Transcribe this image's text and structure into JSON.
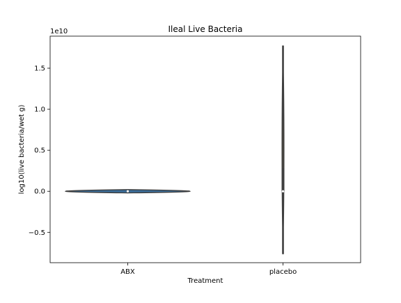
{
  "chart_data": {
    "type": "violin",
    "title": "Ileal Live Bacteria",
    "xlabel": "Treatment",
    "ylabel": "log10(live bacteria/wet g)",
    "y_offset_label": "1e10",
    "y_scale": 10000000000,
    "categories": [
      "ABX",
      "placebo"
    ],
    "ylim": [
      -8700000000.0,
      18900000000.0
    ],
    "yticks": [
      -5000000000.0,
      0.0,
      5000000000.0,
      10000000000.0,
      15000000000.0
    ],
    "ytick_labels": [
      "−0.5",
      "0.0",
      "0.5",
      "1.0",
      "1.5"
    ],
    "grid": false,
    "violins": [
      {
        "category": "ABX",
        "min": -200000000.0,
        "max": 200000000.0,
        "q1": -50000000.0,
        "median": 0.0,
        "q3": 50000000.0,
        "max_half_width": 0.4,
        "color": "#3a6d9a"
      },
      {
        "category": "placebo",
        "min": -7600000000.0,
        "max": 17700000000.0,
        "q1": 0.0,
        "median": 0.0,
        "q3": 2800000000.0,
        "max_half_width": 0.006,
        "color": "#d4a640"
      }
    ]
  }
}
